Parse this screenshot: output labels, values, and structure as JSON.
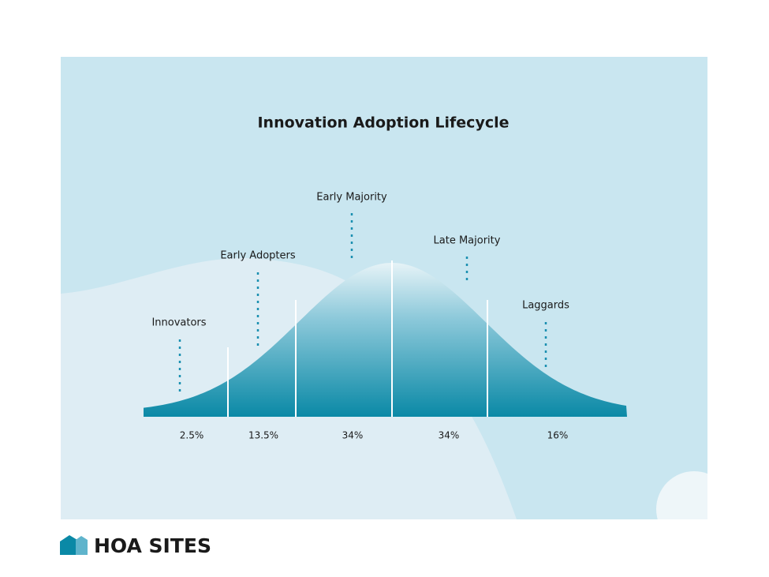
{
  "title": "Innovation Adoption Lifecycle",
  "segments": [
    {
      "label": "Innovators",
      "share": "2.5%"
    },
    {
      "label": "Early Adopters",
      "share": "13.5%"
    },
    {
      "label": "Early Majority",
      "share": "34%"
    },
    {
      "label": "Late Majority",
      "share": "34%"
    },
    {
      "label": "Laggards",
      "share": "16%"
    }
  ],
  "brand": "HOA SITES"
}
